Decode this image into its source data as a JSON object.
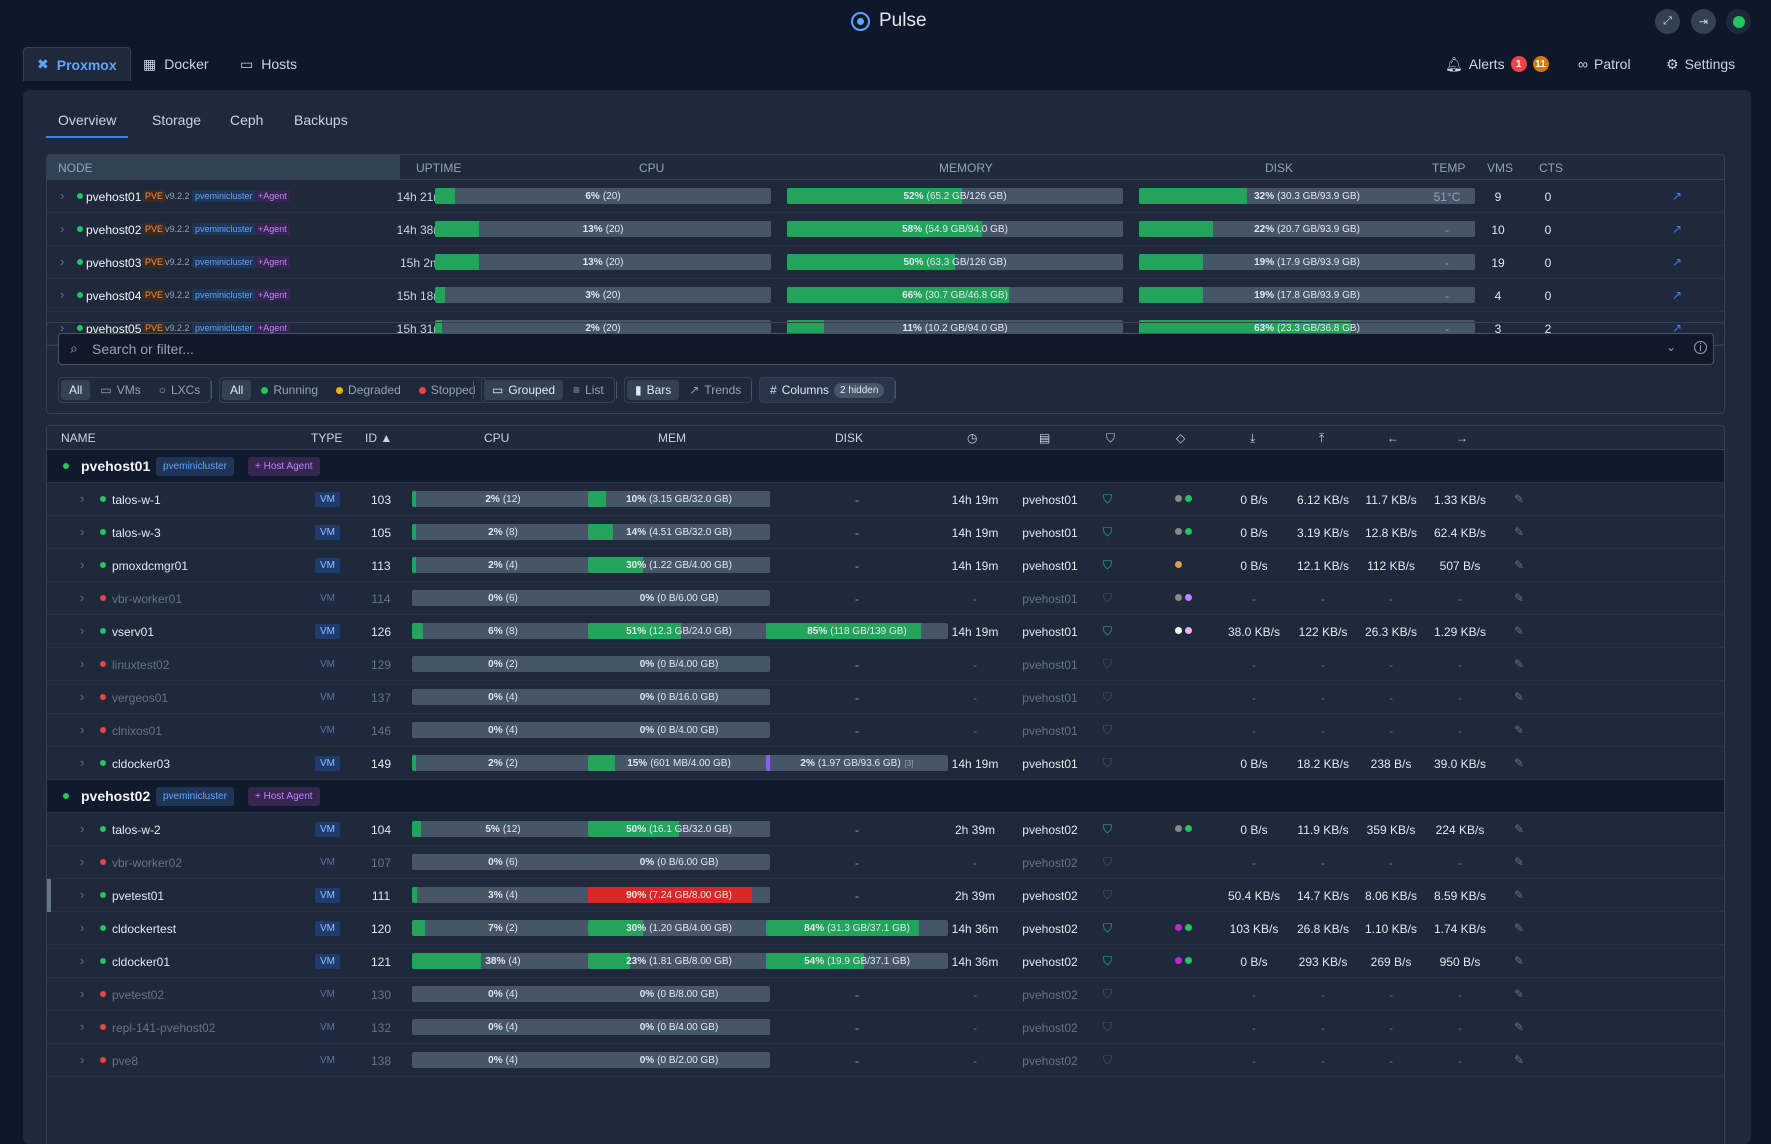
{
  "app": {
    "title": "Pulse"
  },
  "nav": {
    "tabs": [
      {
        "label": "Proxmox",
        "icon": "proxmox-icon",
        "active": true
      },
      {
        "label": "Docker",
        "icon": "docker-icon"
      },
      {
        "label": "Hosts",
        "icon": "monitor-icon"
      }
    ],
    "alerts": {
      "label": "Alerts",
      "critical": "1",
      "warning": "11"
    },
    "patrol": "Patrol",
    "settings": "Settings"
  },
  "subtabs": [
    "Overview",
    "Storage",
    "Ceph",
    "Backups"
  ],
  "colors": {
    "accent": "#3b82f6",
    "bar_green": "#22a45a",
    "bar_red": "#dc2626",
    "running": "#22c55e",
    "stopped": "#ef4444",
    "degraded": "#eab308"
  },
  "node_table": {
    "headers": {
      "node": "NODE",
      "uptime": "UPTIME",
      "cpu": "CPU",
      "memory": "MEMORY",
      "disk": "DISK",
      "temp": "TEMP",
      "vms": "VMS",
      "cts": "CTS"
    },
    "rows": [
      {
        "name": "pvehost01",
        "pve": "PVE",
        "version": "v9.2.2",
        "cluster": "pveminicluster",
        "agent": "+Agent",
        "uptime": "14h 21m",
        "cpu_pct": 6,
        "cpu_pct_label": "6%",
        "cpu_detail": "(20)",
        "mem_pct": 52,
        "mem_pct_label": "52%",
        "mem_detail": "(65.2 GB/126 GB)",
        "disk_pct": 32,
        "disk_pct_label": "32%",
        "disk_detail": "(30.3 GB/93.9 GB)",
        "temp": "51°C",
        "vms": "9",
        "cts": "0"
      },
      {
        "name": "pvehost02",
        "pve": "PVE",
        "version": "v9.2.2",
        "cluster": "pveminicluster",
        "agent": "+Agent",
        "uptime": "14h 38m",
        "cpu_pct": 13,
        "cpu_pct_label": "13%",
        "cpu_detail": "(20)",
        "mem_pct": 58,
        "mem_pct_label": "58%",
        "mem_detail": "(54.9 GB/94.0 GB)",
        "disk_pct": 22,
        "disk_pct_label": "22%",
        "disk_detail": "(20.7 GB/93.9 GB)",
        "temp": "-",
        "vms": "10",
        "cts": "0"
      },
      {
        "name": "pvehost03",
        "pve": "PVE",
        "version": "v9.2.2",
        "cluster": "pveminicluster",
        "agent": "+Agent",
        "uptime": "15h 2m",
        "cpu_pct": 13,
        "cpu_pct_label": "13%",
        "cpu_detail": "(20)",
        "mem_pct": 50,
        "mem_pct_label": "50%",
        "mem_detail": "(63.3 GB/126 GB)",
        "disk_pct": 19,
        "disk_pct_label": "19%",
        "disk_detail": "(17.9 GB/93.9 GB)",
        "temp": "-",
        "vms": "19",
        "cts": "0"
      },
      {
        "name": "pvehost04",
        "pve": "PVE",
        "version": "v9.2.2",
        "cluster": "pveminicluster",
        "agent": "+Agent",
        "uptime": "15h 18m",
        "cpu_pct": 3,
        "cpu_pct_label": "3%",
        "cpu_detail": "(20)",
        "mem_pct": 66,
        "mem_pct_label": "66%",
        "mem_detail": "(30.7 GB/46.8 GB)",
        "disk_pct": 19,
        "disk_pct_label": "19%",
        "disk_detail": "(17.8 GB/93.9 GB)",
        "temp": "-",
        "vms": "4",
        "cts": "0"
      },
      {
        "name": "pvehost05",
        "pve": "PVE",
        "version": "v9.2.2",
        "cluster": "pveminicluster",
        "agent": "+Agent",
        "uptime": "15h 31m",
        "cpu_pct": 2,
        "cpu_pct_label": "2%",
        "cpu_detail": "(20)",
        "mem_pct": 11,
        "mem_pct_label": "11%",
        "mem_detail": "(10.2 GB/94.0 GB)",
        "disk_pct": 63,
        "disk_pct_label": "63%",
        "disk_detail": "(23.3 GB/36.8 GB)",
        "temp": "-",
        "vms": "3",
        "cts": "2"
      }
    ]
  },
  "filters": {
    "search_placeholder": "Search or filter...",
    "type": {
      "all": "All",
      "vms": "VMs",
      "lxcs": "LXCs"
    },
    "status": {
      "all": "All",
      "running": "Running",
      "degraded": "Degraded",
      "stopped": "Stopped"
    },
    "view": {
      "grouped": "Grouped",
      "list": "List"
    },
    "display": {
      "bars": "Bars",
      "trends": "Trends"
    },
    "columns": {
      "label": "Columns",
      "hidden": "2 hidden"
    }
  },
  "guest_table": {
    "headers": {
      "name": "NAME",
      "type": "TYPE",
      "id": "ID ▲",
      "cpu": "CPU",
      "mem": "MEM",
      "disk": "DISK"
    },
    "groups": [
      {
        "name": "pvehost01",
        "cluster": "pveminicluster",
        "agent": "+ Host Agent",
        "rows": [
          {
            "name": "talos-w-1",
            "status": "running",
            "type": "VM",
            "id": "103",
            "cpu_pct": 2,
            "cpu_pct_label": "2%",
            "cpu_detail": "(12)",
            "mem_pct": 10,
            "mem_pct_label": "10%",
            "mem_detail": "(3.15 GB/32.0 GB)",
            "disk": "-",
            "uptime": "14h 19m",
            "node": "pvehost01",
            "agent": "on",
            "tags": [
              "#888888",
              "#22c55e"
            ],
            "disk_read": "0 B/s",
            "disk_write": "6.12 KB/s",
            "net_in": "11.7 KB/s",
            "net_out": "1.33 KB/s"
          },
          {
            "name": "talos-w-3",
            "status": "running",
            "type": "VM",
            "id": "105",
            "cpu_pct": 2,
            "cpu_pct_label": "2%",
            "cpu_detail": "(8)",
            "mem_pct": 14,
            "mem_pct_label": "14%",
            "mem_detail": "(4.51 GB/32.0 GB)",
            "disk": "-",
            "uptime": "14h 19m",
            "node": "pvehost01",
            "agent": "on",
            "tags": [
              "#888888",
              "#22c55e"
            ],
            "disk_read": "0 B/s",
            "disk_write": "3.19 KB/s",
            "net_in": "12.8 KB/s",
            "net_out": "62.4 KB/s"
          },
          {
            "name": "pmoxdcmgr01",
            "status": "running",
            "type": "VM",
            "id": "113",
            "cpu_pct": 2,
            "cpu_pct_label": "2%",
            "cpu_detail": "(4)",
            "mem_pct": 30,
            "mem_pct_label": "30%",
            "mem_detail": "(1.22 GB/4.00 GB)",
            "disk": "-",
            "uptime": "14h 19m",
            "node": "pvehost01",
            "agent": "on",
            "tags": [
              "#d4a24c"
            ],
            "disk_read": "0 B/s",
            "disk_write": "12.1 KB/s",
            "net_in": "112 KB/s",
            "net_out": "507 B/s"
          },
          {
            "name": "vbr-worker01",
            "status": "stopped",
            "type": "VM",
            "id": "114",
            "cpu_pct": 0,
            "cpu_pct_label": "0%",
            "cpu_detail": "(6)",
            "mem_pct": 0,
            "mem_pct_label": "0%",
            "mem_detail": "(0 B/6.00 GB)",
            "disk": "-",
            "uptime": "-",
            "node": "pvehost01",
            "agent": "off",
            "tags": [
              "#888888",
              "#c084fc"
            ],
            "disk_read": "-",
            "disk_write": "-",
            "net_in": "-",
            "net_out": "-"
          },
          {
            "name": "vserv01",
            "status": "running",
            "type": "VM",
            "id": "126",
            "cpu_pct": 6,
            "cpu_pct_label": "6%",
            "cpu_detail": "(8)",
            "mem_pct": 51,
            "mem_pct_label": "51%",
            "mem_detail": "(12.3 GB/24.0 GB)",
            "disk_pct": 85,
            "disk_pct_label": "85%",
            "disk_detail": "(118 GB/139 GB)",
            "uptime": "14h 19m",
            "node": "pvehost01",
            "agent": "on",
            "tags": [
              "#f1f5f9",
              "#f0abfc"
            ],
            "disk_read": "38.0 KB/s",
            "disk_write": "122 KB/s",
            "net_in": "26.3 KB/s",
            "net_out": "1.29 KB/s"
          },
          {
            "name": "linuxtest02",
            "status": "stopped",
            "type": "VM",
            "id": "129",
            "cpu_pct": 0,
            "cpu_pct_label": "0%",
            "cpu_detail": "(2)",
            "mem_pct": 0,
            "mem_pct_label": "0%",
            "mem_detail": "(0 B/4.00 GB)",
            "disk": "-",
            "uptime": "-",
            "node": "pvehost01",
            "agent": "off",
            "tags": [],
            "disk_read": "-",
            "disk_write": "-",
            "net_in": "-",
            "net_out": "-"
          },
          {
            "name": "vergeos01",
            "status": "stopped",
            "type": "VM",
            "id": "137",
            "cpu_pct": 0,
            "cpu_pct_label": "0%",
            "cpu_detail": "(4)",
            "mem_pct": 0,
            "mem_pct_label": "0%",
            "mem_detail": "(0 B/16.0 GB)",
            "disk": "-",
            "uptime": "-",
            "node": "pvehost01",
            "agent": "off",
            "tags": [],
            "disk_read": "-",
            "disk_write": "-",
            "net_in": "-",
            "net_out": "-"
          },
          {
            "name": "clnixos01",
            "status": "stopped",
            "type": "VM",
            "id": "146",
            "cpu_pct": 0,
            "cpu_pct_label": "0%",
            "cpu_detail": "(4)",
            "mem_pct": 0,
            "mem_pct_label": "0%",
            "mem_detail": "(0 B/4.00 GB)",
            "disk": "-",
            "uptime": "-",
            "node": "pvehost01",
            "agent": "off",
            "tags": [],
            "disk_read": "-",
            "disk_write": "-",
            "net_in": "-",
            "net_out": "-"
          },
          {
            "name": "cldocker03",
            "status": "running",
            "type": "VM",
            "id": "149",
            "cpu_pct": 2,
            "cpu_pct_label": "2%",
            "cpu_detail": "(2)",
            "mem_pct": 15,
            "mem_pct_label": "15%",
            "mem_detail": "(601 MB/4.00 GB)",
            "disk_pct": 2,
            "disk_pct_label": "2%",
            "disk_detail": "(1.97 GB/93.6 GB)",
            "disk_extra": "[3]",
            "disk_purple": true,
            "uptime": "14h 19m",
            "node": "pvehost01",
            "agent": "off",
            "tags": [],
            "disk_read": "0 B/s",
            "disk_write": "18.2 KB/s",
            "net_in": "238 B/s",
            "net_out": "39.0 KB/s"
          }
        ]
      },
      {
        "name": "pvehost02",
        "cluster": "pveminicluster",
        "agent": "+ Host Agent",
        "rows": [
          {
            "name": "talos-w-2",
            "status": "running",
            "type": "VM",
            "id": "104",
            "cpu_pct": 5,
            "cpu_pct_label": "5%",
            "cpu_detail": "(12)",
            "mem_pct": 50,
            "mem_pct_label": "50%",
            "mem_detail": "(16.1 GB/32.0 GB)",
            "disk": "-",
            "uptime": "2h 39m",
            "node": "pvehost02",
            "agent": "on",
            "tags": [
              "#888888",
              "#22c55e"
            ],
            "disk_read": "0 B/s",
            "disk_write": "11.9 KB/s",
            "net_in": "359 KB/s",
            "net_out": "224 KB/s"
          },
          {
            "name": "vbr-worker02",
            "status": "stopped",
            "type": "VM",
            "id": "107",
            "cpu_pct": 0,
            "cpu_pct_label": "0%",
            "cpu_detail": "(6)",
            "mem_pct": 0,
            "mem_pct_label": "0%",
            "mem_detail": "(0 B/6.00 GB)",
            "disk": "-",
            "uptime": "-",
            "node": "pvehost02",
            "agent": "off",
            "tags": [],
            "disk_read": "-",
            "disk_write": "-",
            "net_in": "-",
            "net_out": "-"
          },
          {
            "name": "pvetest01",
            "status": "running",
            "type": "VM",
            "id": "111",
            "cpu_pct": 3,
            "cpu_pct_label": "3%",
            "cpu_detail": "(4)",
            "mem_pct": 90,
            "mem_pct_label": "90%",
            "mem_detail": "(7.24 GB/8.00 GB)",
            "mem_red": true,
            "disk": "-",
            "uptime": "2h 39m",
            "node": "pvehost02",
            "agent": "off",
            "tags": [],
            "disk_read": "50.4 KB/s",
            "disk_write": "14.7 KB/s",
            "net_in": "8.06 KB/s",
            "net_out": "8.59 KB/s",
            "marked": true
          },
          {
            "name": "cldockertest",
            "status": "running",
            "type": "VM",
            "id": "120",
            "cpu_pct": 7,
            "cpu_pct_label": "7%",
            "cpu_detail": "(2)",
            "mem_pct": 30,
            "mem_pct_label": "30%",
            "mem_detail": "(1.20 GB/4.00 GB)",
            "disk_pct": 84,
            "disk_pct_label": "84%",
            "disk_detail": "(31.3 GB/37.1 GB)",
            "uptime": "14h 36m",
            "node": "pvehost02",
            "agent": "on",
            "tags": [
              "#c026d3",
              "#22c55e"
            ],
            "disk_read": "103 KB/s",
            "disk_write": "26.8 KB/s",
            "net_in": "1.10 KB/s",
            "net_out": "1.74 KB/s"
          },
          {
            "name": "cldocker01",
            "status": "running",
            "type": "VM",
            "id": "121",
            "cpu_pct": 38,
            "cpu_pct_label": "38%",
            "cpu_detail": "(4)",
            "mem_pct": 23,
            "mem_pct_label": "23%",
            "mem_detail": "(1.81 GB/8.00 GB)",
            "disk_pct": 54,
            "disk_pct_label": "54%",
            "disk_detail": "(19.9 GB/37.1 GB)",
            "uptime": "14h 36m",
            "node": "pvehost02",
            "agent": "on",
            "tags": [
              "#c026d3",
              "#22c55e"
            ],
            "disk_read": "0 B/s",
            "disk_write": "293 KB/s",
            "net_in": "269 B/s",
            "net_out": "950 B/s"
          },
          {
            "name": "pvetest02",
            "status": "stopped",
            "type": "VM",
            "id": "130",
            "cpu_pct": 0,
            "cpu_pct_label": "0%",
            "cpu_detail": "(4)",
            "mem_pct": 0,
            "mem_pct_label": "0%",
            "mem_detail": "(0 B/8.00 GB)",
            "disk": "-",
            "uptime": "-",
            "node": "pvehost02",
            "agent": "off",
            "tags": [],
            "disk_read": "-",
            "disk_write": "-",
            "net_in": "-",
            "net_out": "-"
          },
          {
            "name": "repl-141-pvehost02",
            "status": "stopped",
            "type": "VM",
            "id": "132",
            "cpu_pct": 0,
            "cpu_pct_label": "0%",
            "cpu_detail": "(4)",
            "mem_pct": 0,
            "mem_pct_label": "0%",
            "mem_detail": "(0 B/4.00 GB)",
            "disk": "-",
            "uptime": "-",
            "node": "pvehost02",
            "agent": "off",
            "tags": [],
            "disk_read": "-",
            "disk_write": "-",
            "net_in": "-",
            "net_out": "-"
          },
          {
            "name": "pve8",
            "status": "stopped",
            "type": "VM",
            "id": "138",
            "cpu_pct": 0,
            "cpu_pct_label": "0%",
            "cpu_detail": "(4)",
            "mem_pct": 0,
            "mem_pct_label": "0%",
            "mem_detail": "(0 B/2.00 GB)",
            "disk": "-",
            "uptime": "-",
            "node": "pvehost02",
            "agent": "off",
            "tags": [],
            "disk_read": "-",
            "disk_write": "-",
            "net_in": "-",
            "net_out": "-"
          }
        ]
      }
    ]
  }
}
